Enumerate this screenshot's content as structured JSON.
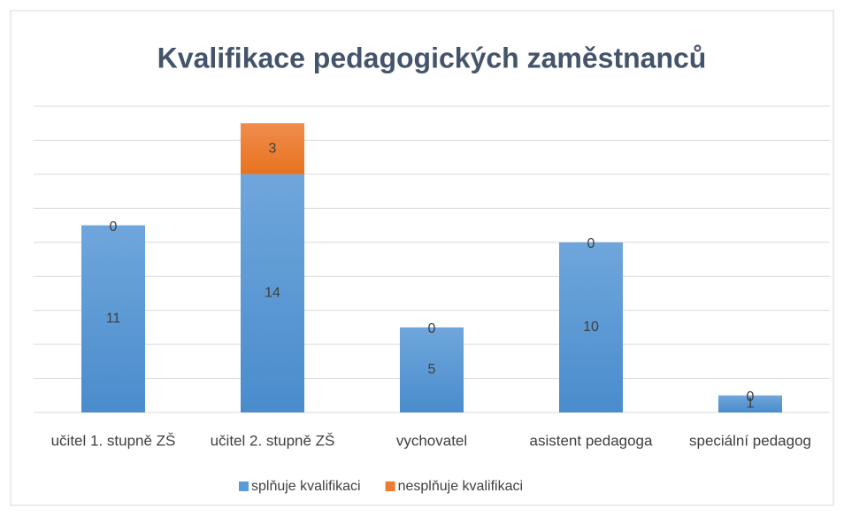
{
  "chart_data": {
    "type": "stacked_bar",
    "title": "Kvalifikace pedagogických zaměstnanců",
    "categories": [
      "učitel 1. stupně ZŠ",
      "učitel 2. stupně ZŠ",
      "vychovatel",
      "asistent pedagoga",
      "speciální pedagog"
    ],
    "series": [
      {
        "name": "splňuje kvalifikaci",
        "color": "#5b9bd5",
        "values": [
          11,
          14,
          5,
          10,
          1
        ]
      },
      {
        "name": "nesplňuje kvalifikaci",
        "color": "#ed7d31",
        "values": [
          0,
          3,
          0,
          0,
          0
        ]
      }
    ],
    "ylim": [
      0,
      18
    ],
    "yticks": [
      0,
      2,
      4,
      6,
      8,
      10,
      12,
      14,
      16,
      18
    ],
    "grid": true,
    "legend": "bottom"
  }
}
